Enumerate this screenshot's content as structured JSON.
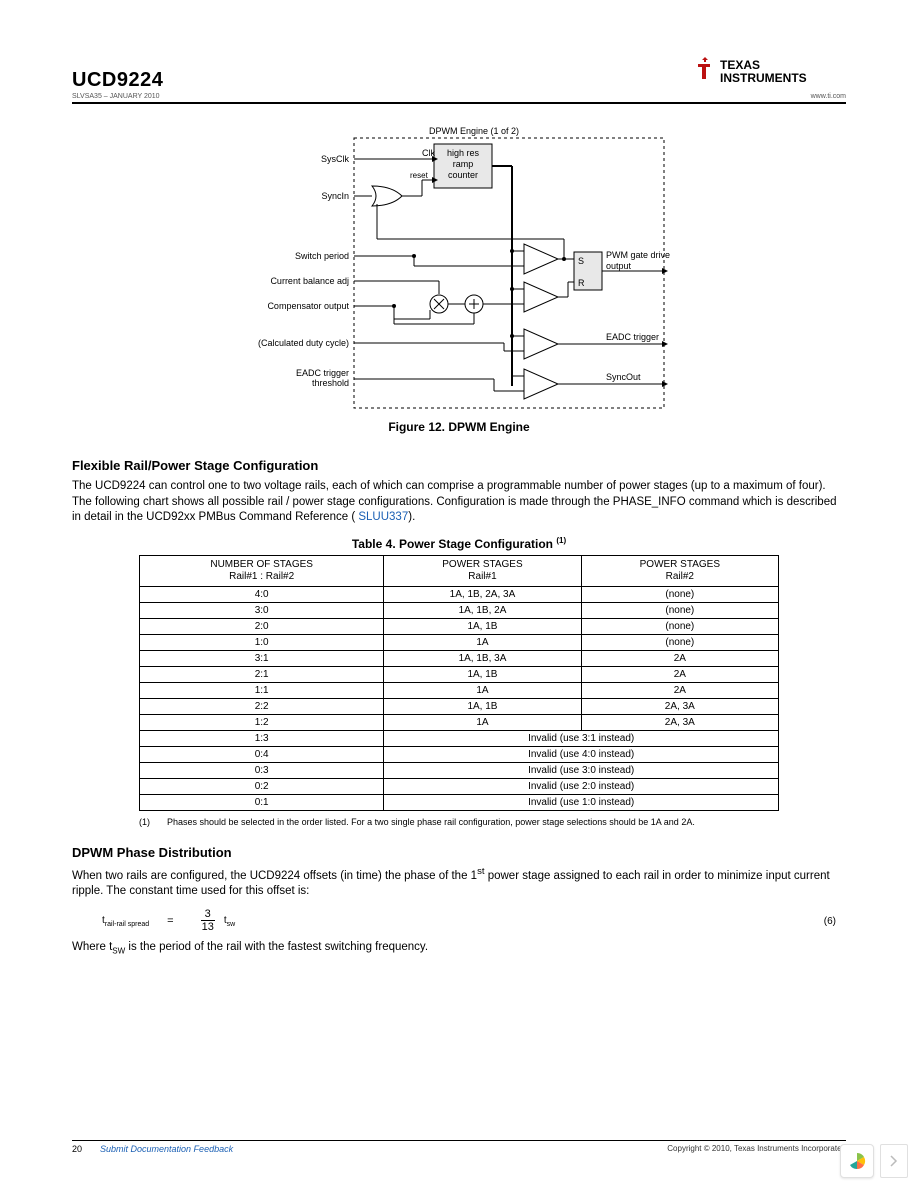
{
  "header": {
    "part_number": "UCD9224",
    "doc_id": "SLVSA35 – JANUARY 2010",
    "url": "www.ti.com",
    "logo_text1": "TEXAS",
    "logo_text2": "INSTRUMENTS"
  },
  "diagram": {
    "title": "DPWM Engine (1 of 2)",
    "left_labels": [
      "SysClk",
      "SyncIn",
      "Switch period",
      "Current balance adj",
      "Compensator output",
      "(Calculated duty cycle)",
      "EADC trigger threshold"
    ],
    "right_labels": [
      "PWM gate drive output",
      "EADC trigger",
      "SyncOut"
    ],
    "block_lines": [
      "high res",
      "ramp",
      "counter"
    ],
    "clk_label": "Clk",
    "reset_label": "reset",
    "sr_labels": [
      "S",
      "R"
    ],
    "caption": "Figure 12. DPWM Engine"
  },
  "section1": {
    "heading": "Flexible Rail/Power Stage Configuration",
    "para_pre": "The UCD9224 can control one to two voltage rails, each of which can comprise a programmable number of power stages (up to a maximum of four). The following chart shows all possible rail / power stage configurations. Configuration is made through the PHASE_INFO command which is described in detail in the UCD92xx PMBus Command Reference (",
    "link": "SLUU337",
    "para_post": ")."
  },
  "table": {
    "caption": "Table 4. Power Stage Configuration",
    "caption_sup": "(1)",
    "header_col1_line1": "NUMBER OF STAGES",
    "header_col1_line2": "Rail#1 : Rail#2",
    "header_col2_line1": "POWER STAGES",
    "header_col2_line2": "Rail#1",
    "header_col3_line1": "POWER STAGES",
    "header_col3_line2": "Rail#2",
    "rows3col": [
      [
        "4:0",
        "1A, 1B, 2A, 3A",
        "(none)"
      ],
      [
        "3:0",
        "1A, 1B, 2A",
        "(none)"
      ],
      [
        "2:0",
        "1A, 1B",
        "(none)"
      ],
      [
        "1:0",
        "1A",
        "(none)"
      ],
      [
        "3:1",
        "1A, 1B, 3A",
        "2A"
      ],
      [
        "2:1",
        "1A, 1B",
        "2A"
      ],
      [
        "1:1",
        "1A",
        "2A"
      ],
      [
        "2:2",
        "1A, 1B",
        "2A, 3A"
      ],
      [
        "1:2",
        "1A",
        "2A, 3A"
      ]
    ],
    "rows2col": [
      [
        "1:3",
        "Invalid (use 3:1 instead)"
      ],
      [
        "0:4",
        "Invalid (use 4:0 instead)"
      ],
      [
        "0:3",
        "Invalid (use 3:0 instead)"
      ],
      [
        "0:2",
        "Invalid (use 2:0 instead)"
      ],
      [
        "0:1",
        "Invalid (use 1:0 instead)"
      ]
    ],
    "footnote_marker": "(1)",
    "footnote_text": "Phases should be selected in the order listed. For a two single phase rail configuration, power stage selections should be 1A and 2A."
  },
  "section2": {
    "heading": "DPWM Phase Distribution",
    "para1_pre": "When two rails are configured, the UCD9224 offsets (in time) the phase of the 1",
    "para1_sup": "st",
    "para1_post": " power stage assigned to each rail in order to minimize input current ripple. The constant time used for this offset is:",
    "eq_lhs": "t",
    "eq_lhs_sub": "rail-rail spread",
    "eq_eq": "=",
    "eq_num": "3",
    "eq_den": "13",
    "eq_rhs": "t",
    "eq_rhs_sub": "sw",
    "eq_number": "(6)",
    "para2_pre": "Where t",
    "para2_sub": "SW",
    "para2_post": " is the period of the rail with the fastest switching frequency."
  },
  "footer": {
    "page": "20",
    "feedback": "Submit Documentation Feedback",
    "copyright": "Copyright © 2010, Texas Instruments Incorporated"
  }
}
